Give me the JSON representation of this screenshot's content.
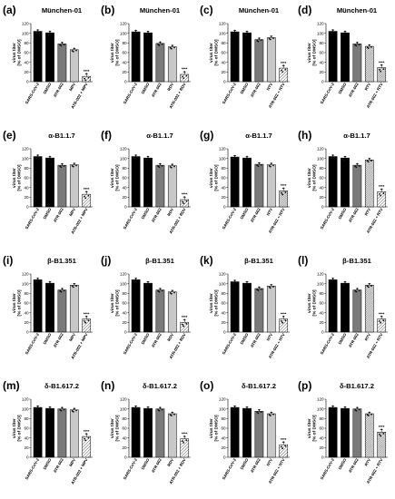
{
  "chart_data": [
    {
      "panel": "(a)",
      "title": "München-01",
      "type": "bar",
      "ylabel": "virus titer\n[% of DMSO]",
      "ylim": [
        0,
        120
      ],
      "yticks": [
        0,
        20,
        40,
        60,
        80,
        100,
        120
      ],
      "categories": [
        "SARS-CoV-2",
        "DMSO",
        "ATR-002",
        "MPV",
        "ATR-002 + MPV"
      ],
      "values": [
        104,
        101,
        78,
        66,
        11
      ],
      "significance": [
        "",
        "",
        "",
        "",
        "****"
      ]
    },
    {
      "panel": "(b)",
      "title": "München-01",
      "type": "bar",
      "ylabel": "virus titer\n[% of DMSO]",
      "ylim": [
        0,
        120
      ],
      "yticks": [
        0,
        20,
        40,
        60,
        80,
        100,
        120
      ],
      "categories": [
        "SARS-CoV-2",
        "DMSO",
        "ATR-002",
        "RDV",
        "ATR-002 + RDV"
      ],
      "values": [
        103,
        101,
        79,
        72,
        15
      ],
      "significance": [
        "",
        "",
        "",
        "",
        "****"
      ]
    },
    {
      "panel": "(c)",
      "title": "München-01",
      "type": "bar",
      "ylabel": "virus titer\n[% of DMSO]",
      "ylim": [
        0,
        120
      ],
      "yticks": [
        0,
        20,
        40,
        60,
        80,
        100,
        120
      ],
      "categories": [
        "SARS-CoV-2",
        "DMSO",
        "ATR-002",
        "NTV",
        "ATR-002 + NTV"
      ],
      "values": [
        103,
        101,
        87,
        91,
        28
      ],
      "significance": [
        "",
        "",
        "",
        "",
        "****"
      ]
    },
    {
      "panel": "(d)",
      "title": "München-01",
      "type": "bar",
      "ylabel": "virus titer\n[% of DMSO]",
      "ylim": [
        0,
        120
      ],
      "yticks": [
        0,
        20,
        40,
        60,
        80,
        100,
        120
      ],
      "categories": [
        "SARS-CoV-2",
        "DMSO",
        "ATR-002",
        "RTV",
        "ATR-002 + RTV"
      ],
      "values": [
        104,
        101,
        78,
        73,
        29
      ],
      "significance": [
        "",
        "",
        "",
        "",
        "****"
      ]
    },
    {
      "panel": "(e)",
      "title": "α-B1.1.7",
      "type": "bar",
      "ylabel": "virus titer\n[% of DMSO]",
      "ylim": [
        0,
        120
      ],
      "yticks": [
        0,
        20,
        40,
        60,
        80,
        100,
        120
      ],
      "categories": [
        "SARS-CoV-2",
        "DMSO",
        "ATR-002",
        "MPV",
        "ATR-002 + MPV"
      ],
      "values": [
        104,
        101,
        86,
        87,
        26
      ],
      "significance": [
        "",
        "",
        "",
        "",
        "****"
      ]
    },
    {
      "panel": "(f)",
      "title": "α-B1.1.7",
      "type": "bar",
      "ylabel": "virus titer\n[% of DMSO]",
      "ylim": [
        0,
        120
      ],
      "yticks": [
        0,
        20,
        40,
        60,
        80,
        100,
        120
      ],
      "categories": [
        "SARS-CoV-2",
        "DMSO",
        "ATR-002",
        "RDV",
        "ATR-002 + RDV"
      ],
      "values": [
        104,
        101,
        86,
        85,
        15
      ],
      "significance": [
        "",
        "",
        "",
        "",
        "****"
      ]
    },
    {
      "panel": "(g)",
      "title": "α-B1.1.7",
      "type": "bar",
      "ylabel": "virus titer\n[% of DMSO]",
      "ylim": [
        0,
        120
      ],
      "yticks": [
        0,
        20,
        40,
        60,
        80,
        100,
        120
      ],
      "categories": [
        "SARS-CoV-2",
        "DMSO",
        "ATR-002",
        "NTV",
        "ATR-002 + NTV"
      ],
      "values": [
        103,
        101,
        88,
        87,
        33
      ],
      "significance": [
        "",
        "",
        "",
        "",
        "****"
      ]
    },
    {
      "panel": "(h)",
      "title": "α-B1.1.7",
      "type": "bar",
      "ylabel": "virus titer\n[% of DMSO]",
      "ylim": [
        0,
        120
      ],
      "yticks": [
        0,
        20,
        40,
        60,
        80,
        100,
        120
      ],
      "categories": [
        "SARS-CoV-2",
        "DMSO",
        "ATR-002",
        "RTV",
        "ATR-002 + RTV"
      ],
      "values": [
        104,
        101,
        86,
        97,
        31
      ],
      "significance": [
        "",
        "",
        "",
        "",
        "****"
      ]
    },
    {
      "panel": "(i)",
      "title": "β-B1.351",
      "type": "bar",
      "ylabel": "virus titer\n[% of DMSO]",
      "ylim": [
        0,
        120
      ],
      "yticks": [
        0,
        20,
        40,
        60,
        80,
        100,
        120
      ],
      "categories": [
        "SARS-CoV-2",
        "DMSO",
        "ATR-002",
        "MPV",
        "ATR-002 + MPV"
      ],
      "values": [
        108,
        101,
        87,
        97,
        27
      ],
      "significance": [
        "",
        "",
        "",
        "",
        "****"
      ]
    },
    {
      "panel": "(j)",
      "title": "β-B1.351",
      "type": "bar",
      "ylabel": "virus titer\n[% of DMSO]",
      "ylim": [
        0,
        120
      ],
      "yticks": [
        0,
        20,
        40,
        60,
        80,
        100,
        120
      ],
      "categories": [
        "SARS-CoV-2",
        "DMSO",
        "ATR-002",
        "RDV",
        "ATR-002 + RDV"
      ],
      "values": [
        108,
        101,
        87,
        83,
        20
      ],
      "significance": [
        "",
        "",
        "",
        "",
        "****"
      ]
    },
    {
      "panel": "(k)",
      "title": "β-B1.351",
      "type": "bar",
      "ylabel": "virus titer\n[% of DMSO]",
      "ylim": [
        0,
        120
      ],
      "yticks": [
        0,
        20,
        40,
        60,
        80,
        100,
        120
      ],
      "categories": [
        "SARS-CoV-2",
        "DMSO",
        "ATR-002",
        "NTV",
        "ATR-002 + NTV"
      ],
      "values": [
        104,
        101,
        90,
        95,
        27
      ],
      "significance": [
        "",
        "",
        "",
        "",
        "****"
      ]
    },
    {
      "panel": "(l)",
      "title": "β-B1.351",
      "type": "bar",
      "ylabel": "virus titer\n[% of DMSO]",
      "ylim": [
        0,
        120
      ],
      "yticks": [
        0,
        20,
        40,
        60,
        80,
        100,
        120
      ],
      "categories": [
        "SARS-CoV-2",
        "DMSO",
        "ATR-002",
        "RTV",
        "ATR-002 + RTV"
      ],
      "values": [
        108,
        101,
        87,
        97,
        27
      ],
      "significance": [
        "",
        "",
        "",
        "",
        "****"
      ]
    },
    {
      "panel": "(m)",
      "title": "δ-B1.617.2",
      "type": "bar",
      "ylabel": "virus titer\n[% of DMSO]",
      "ylim": [
        0,
        120
      ],
      "yticks": [
        0,
        20,
        40,
        60,
        80,
        100,
        120
      ],
      "categories": [
        "SARS-CoV-2",
        "DMSO",
        "ATR-002",
        "MPV",
        "ATR-002 + MPV"
      ],
      "values": [
        103,
        101,
        100,
        98,
        43
      ],
      "significance": [
        "",
        "",
        "",
        "",
        "****"
      ]
    },
    {
      "panel": "(n)",
      "title": "δ-B1.617.2",
      "type": "bar",
      "ylabel": "virus titer\n[% of DMSO]",
      "ylim": [
        0,
        120
      ],
      "yticks": [
        0,
        20,
        40,
        60,
        80,
        100,
        120
      ],
      "categories": [
        "SARS-CoV-2",
        "DMSO",
        "ATR-002",
        "RDV",
        "ATR-002 + RDV"
      ],
      "values": [
        103,
        101,
        100,
        90,
        38
      ],
      "significance": [
        "",
        "",
        "",
        "",
        "****"
      ]
    },
    {
      "panel": "(o)",
      "title": "δ-B1.617.2",
      "type": "bar",
      "ylabel": "virus titer\n[% of DMSO]",
      "ylim": [
        0,
        120
      ],
      "yticks": [
        0,
        20,
        40,
        60,
        80,
        100,
        120
      ],
      "categories": [
        "SARS-CoV-2",
        "DMSO",
        "ATR-002",
        "NTV",
        "ATR-002 + NTV"
      ],
      "values": [
        103,
        101,
        95,
        90,
        26
      ],
      "significance": [
        "",
        "",
        "",
        "",
        "****"
      ]
    },
    {
      "panel": "(p)",
      "title": "δ-B1.617.2",
      "type": "bar",
      "ylabel": "virus titer\n[% of DMSO]",
      "ylim": [
        0,
        120
      ],
      "yticks": [
        0,
        20,
        40,
        60,
        80,
        100,
        120
      ],
      "categories": [
        "SARS-CoV-2",
        "DMSO",
        "ATR-002",
        "RTV",
        "ATR-002 + RTV"
      ],
      "values": [
        103,
        101,
        100,
        90,
        52
      ],
      "significance": [
        "",
        "",
        "",
        "",
        "****"
      ]
    }
  ],
  "colors": {
    "sars_cov_2": "#000000",
    "dmso": "#000000",
    "atr_002": "#7a7a7a",
    "second_drug": "#c8c8c8",
    "combination_fill": "#ffffff",
    "combination_hatch": "#555555",
    "points": "#111111"
  }
}
